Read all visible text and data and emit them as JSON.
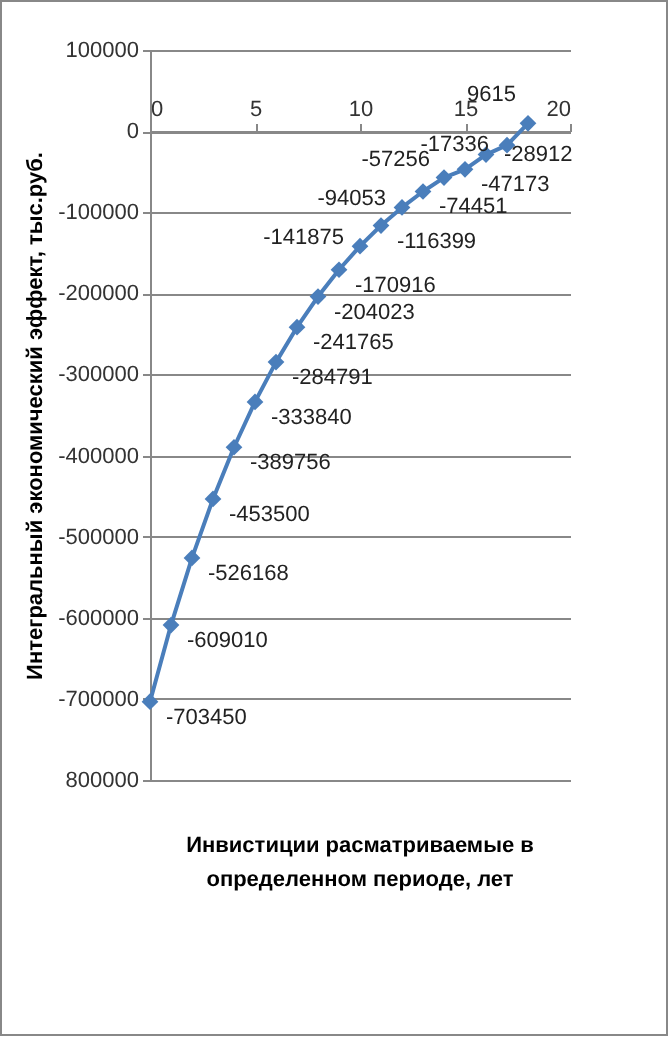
{
  "chart_data": {
    "type": "line",
    "xlabel": "Инвистиции расматриваемые в определенном периоде, лет",
    "ylabel": "Интегральный экономический эффект, тыс.руб.",
    "x": [
      0,
      1,
      2,
      3,
      4,
      5,
      6,
      7,
      8,
      9,
      10,
      11,
      12,
      13,
      14,
      15,
      16,
      17,
      18
    ],
    "series": [
      {
        "color": "#4a7ebb",
        "values": [
          -703450,
          -609010,
          -526168,
          -453500,
          -389756,
          -333840,
          -284791,
          -241765,
          -204023,
          -170916,
          -141875,
          -116399,
          -94053,
          -74451,
          -57256,
          -47173,
          -28912,
          -17336,
          9615
        ]
      }
    ],
    "data_labels": true,
    "xlim": [
      0,
      20
    ],
    "xticks": [
      0,
      5,
      10,
      15,
      20
    ],
    "ylim": [
      -800000,
      100000
    ],
    "yticks": [
      100000,
      0,
      -100000,
      -200000,
      -300000,
      -400000,
      -500000,
      -600000,
      -700000,
      {
        "value": -800000,
        "label": "800000"
      }
    ],
    "grid": "y",
    "marker": "diamond",
    "line_style": "solid"
  }
}
